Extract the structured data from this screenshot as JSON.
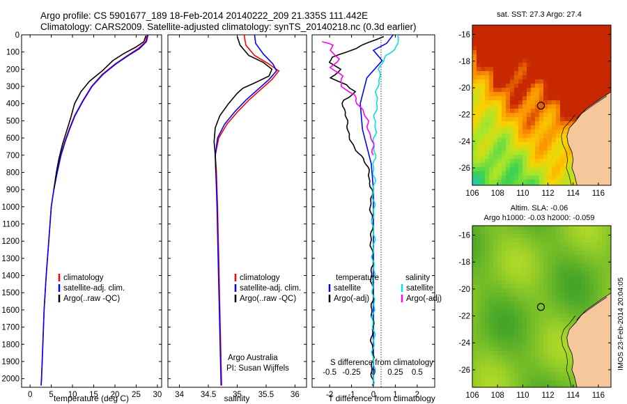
{
  "header": {
    "line1": "Argo profile: CS 5901677_189 18-Feb-2014 20140222_209 21.335S 111.442E",
    "line2": "Climatology: CARS2009. Satellite-adjusted climatology: synTS_20140218.nc (0.3d earlier)"
  },
  "colors": {
    "climatology": "#ff0000",
    "satellite": "#0000ff",
    "argo": "#000000",
    "sat_salinity": "#00e0e0",
    "argo_salinity": "#ff00ff",
    "land": "#f5c79a"
  },
  "chart_data": [
    {
      "type": "line",
      "id": "temperature",
      "xlabel": "temperature (deg C)",
      "xlim": [
        -2,
        31
      ],
      "xticks": [
        0,
        5,
        10,
        15,
        20,
        25,
        30
      ],
      "ylim": [
        0,
        2050
      ],
      "yticks": [
        0,
        100,
        200,
        300,
        400,
        500,
        600,
        700,
        800,
        900,
        1000,
        1100,
        1200,
        1300,
        1400,
        1500,
        1600,
        1700,
        1800,
        1900,
        2000
      ],
      "legend": [
        "climatology",
        "satellite-adj. clim.",
        "Argo(..raw -QC)"
      ],
      "series": [
        {
          "name": "climatology",
          "color": "#ff0000",
          "points": [
            [
              27.6,
              0
            ],
            [
              27.2,
              40
            ],
            [
              25.5,
              80
            ],
            [
              23,
              120
            ],
            [
              20,
              170
            ],
            [
              17,
              230
            ],
            [
              14.5,
              300
            ],
            [
              12.5,
              380
            ],
            [
              10.5,
              470
            ],
            [
              9.2,
              550
            ],
            [
              8.2,
              620
            ],
            [
              7.2,
              700
            ],
            [
              6.3,
              800
            ],
            [
              5.6,
              900
            ],
            [
              5.0,
              1000
            ],
            [
              4.4,
              1200
            ],
            [
              3.8,
              1400
            ],
            [
              3.3,
              1600
            ],
            [
              3.0,
              1800
            ],
            [
              2.7,
              2000
            ],
            [
              2.6,
              2040
            ]
          ]
        },
        {
          "name": "satellite-adj. clim.",
          "color": "#0000ff",
          "points": [
            [
              27.8,
              0
            ],
            [
              27.4,
              40
            ],
            [
              25.8,
              80
            ],
            [
              23.2,
              120
            ],
            [
              20.2,
              170
            ],
            [
              17.2,
              230
            ],
            [
              14.6,
              300
            ],
            [
              12.6,
              380
            ],
            [
              10.6,
              470
            ],
            [
              9.3,
              550
            ],
            [
              8.3,
              620
            ],
            [
              7.3,
              700
            ],
            [
              6.4,
              800
            ],
            [
              5.6,
              900
            ],
            [
              5.0,
              1000
            ],
            [
              4.4,
              1200
            ],
            [
              3.8,
              1400
            ],
            [
              3.3,
              1600
            ],
            [
              3.0,
              1800
            ],
            [
              2.7,
              2000
            ],
            [
              2.6,
              2040
            ]
          ]
        },
        {
          "name": "Argo(..raw -QC)",
          "color": "#000000",
          "points": [
            [
              27.3,
              5
            ],
            [
              26.8,
              40
            ],
            [
              25,
              70
            ],
            [
              22,
              110
            ],
            [
              19.5,
              150
            ],
            [
              17,
              210
            ],
            [
              14,
              270
            ],
            [
              12,
              330
            ],
            [
              10.5,
              400
            ],
            [
              9.6,
              480
            ],
            [
              8.6,
              560
            ],
            [
              7.6,
              640
            ],
            [
              6.8,
              720
            ],
            [
              6.2,
              800
            ],
            [
              5.6,
              900
            ]
          ]
        }
      ]
    },
    {
      "type": "line",
      "id": "salinity",
      "xlabel": "salinity",
      "xlim": [
        33.8,
        36.2
      ],
      "xticks": [
        34,
        34.5,
        35,
        35.5,
        36
      ],
      "ylim": [
        0,
        2050
      ],
      "legend": [
        "climatology",
        "satellite-adj. clim.",
        "Argo(..raw -QC)"
      ],
      "series": [
        {
          "name": "climatology",
          "color": "#ff0000",
          "points": [
            [
              35.12,
              0
            ],
            [
              35.15,
              60
            ],
            [
              35.3,
              120
            ],
            [
              35.55,
              170
            ],
            [
              35.72,
              210
            ],
            [
              35.6,
              260
            ],
            [
              35.4,
              320
            ],
            [
              35.2,
              380
            ],
            [
              35.0,
              450
            ],
            [
              34.82,
              520
            ],
            [
              34.68,
              600
            ],
            [
              34.62,
              700
            ],
            [
              34.64,
              800
            ],
            [
              34.66,
              1000
            ],
            [
              34.68,
              1300
            ],
            [
              34.7,
              1600
            ],
            [
              34.72,
              1900
            ],
            [
              34.73,
              2040
            ]
          ]
        },
        {
          "name": "satellite-adj. clim.",
          "color": "#0000ff",
          "points": [
            [
              35.3,
              0
            ],
            [
              35.32,
              50
            ],
            [
              35.45,
              110
            ],
            [
              35.62,
              170
            ],
            [
              35.68,
              210
            ],
            [
              35.55,
              260
            ],
            [
              35.35,
              320
            ],
            [
              35.15,
              380
            ],
            [
              34.95,
              450
            ],
            [
              34.78,
              520
            ],
            [
              34.66,
              600
            ],
            [
              34.62,
              700
            ],
            [
              34.63,
              800
            ],
            [
              34.65,
              1000
            ],
            [
              34.67,
              1300
            ],
            [
              34.69,
              1600
            ],
            [
              34.71,
              1900
            ],
            [
              34.72,
              2040
            ]
          ]
        },
        {
          "name": "Argo(..raw -QC)",
          "color": "#000000",
          "points": [
            [
              35.0,
              10
            ],
            [
              35.05,
              60
            ],
            [
              35.2,
              120
            ],
            [
              35.45,
              160
            ],
            [
              35.6,
              200
            ],
            [
              35.55,
              240
            ],
            [
              35.3,
              280
            ],
            [
              35.1,
              310
            ],
            [
              35.0,
              340
            ],
            [
              34.85,
              400
            ],
            [
              34.7,
              470
            ],
            [
              34.62,
              540
            ],
            [
              34.6,
              620
            ],
            [
              34.62,
              700
            ],
            [
              34.63,
              800
            ]
          ]
        }
      ]
    },
    {
      "type": "line",
      "id": "difference",
      "xlabel": "T difference from climatology",
      "xlabel2": "S difference from climatology",
      "xlim": [
        -2.8,
        2.8
      ],
      "xticks": [
        -2,
        -1,
        0,
        1,
        2
      ],
      "xticks_top": [
        "-0.5",
        "-0.25",
        "0",
        "0.25",
        "0.5"
      ],
      "ylim": [
        0,
        2050
      ],
      "legend_left_title": "temperature",
      "legend_right_title": "salinity",
      "legend": [
        "satellite",
        "Argo(-adj)",
        "satellite",
        "Argo(-adj)"
      ],
      "series": [
        {
          "name": "T satellite",
          "color": "#0000ff",
          "points": [
            [
              0.9,
              0
            ],
            [
              0.6,
              50
            ],
            [
              0.0,
              90
            ],
            [
              0.4,
              150
            ],
            [
              -0.3,
              250
            ],
            [
              -0.6,
              400
            ],
            [
              -0.5,
              550
            ],
            [
              -0.3,
              650
            ],
            [
              -0.1,
              750
            ],
            [
              0,
              900
            ],
            [
              0,
              2040
            ]
          ]
        },
        {
          "name": "T Argo(-adj)",
          "color": "#000000",
          "points": [
            [
              0.5,
              10
            ],
            [
              -0.5,
              60
            ],
            [
              -1.2,
              100
            ],
            [
              -1.8,
              130
            ],
            [
              -2.0,
              160
            ],
            [
              -1.5,
              200
            ],
            [
              -1.9,
              250
            ],
            [
              -1.3,
              290
            ],
            [
              -0.8,
              330
            ],
            [
              -1.4,
              380
            ],
            [
              -1.3,
              450
            ],
            [
              -1.2,
              560
            ],
            [
              -0.9,
              640
            ],
            [
              -0.5,
              720
            ],
            [
              -0.2,
              800
            ],
            [
              -0.1,
              900
            ],
            [
              -0.1,
              1000
            ],
            [
              -0.05,
              1500
            ],
            [
              -0.05,
              2040
            ]
          ]
        },
        {
          "name": "S satellite",
          "color": "#00e0e0",
          "points": [
            [
              1.1,
              0
            ],
            [
              1.2,
              50
            ],
            [
              0.6,
              120
            ],
            [
              0.3,
              200
            ],
            [
              0.2,
              300
            ],
            [
              0.1,
              450
            ],
            [
              0.05,
              600
            ],
            [
              0.02,
              800
            ],
            [
              0,
              1000
            ],
            [
              0,
              2040
            ]
          ]
        },
        {
          "name": "S Argo(-adj)",
          "color": "#ff00ff",
          "points": [
            [
              -2.3,
              40
            ],
            [
              -1.8,
              60
            ],
            [
              -2.0,
              90
            ],
            [
              -1.6,
              140
            ],
            [
              -1.9,
              190
            ],
            [
              -1.4,
              240
            ],
            [
              -1.5,
              300
            ],
            [
              -0.9,
              350
            ],
            [
              -0.6,
              420
            ],
            [
              -0.3,
              500
            ],
            [
              -0.1,
              600
            ],
            [
              0,
              700
            ]
          ]
        }
      ]
    }
  ],
  "maps": {
    "sst_title": "sat. SST: 27.3 Argo: 27.4",
    "sla_title1": "Altim. SLA: -0.06",
    "sla_title2": "Argo h1000: -0.03 h2000: -0.059",
    "lat_ticks": [
      "-16",
      "-18",
      "-20",
      "-22",
      "-24",
      "-26"
    ],
    "lon_ticks": [
      "106",
      "108",
      "110",
      "112",
      "114",
      "116"
    ],
    "argo_lat": -21.335,
    "argo_lon": 111.442
  },
  "annotations": {
    "institution": "Argo Australia",
    "pi": "PI: Susan Wijffels",
    "credit": "IMOS 23-Feb-2014 20:04:05"
  }
}
